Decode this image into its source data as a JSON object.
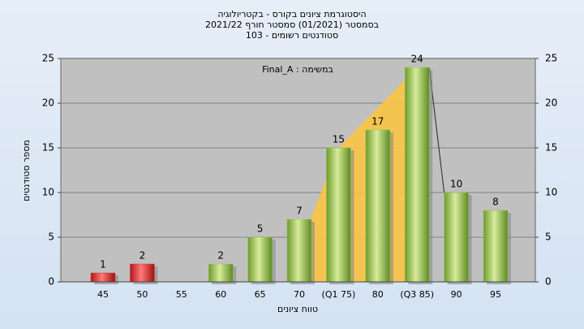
{
  "chart_data": {
    "type": "bar",
    "title": "היסטוגרמת ציונים בקורס - בקטריולוגיה",
    "subtitle": "בסמסטר  (01/2021)  סמסטר חורף 2021/22",
    "subtitle2": "סטודנטים רשומים - 103",
    "annotation": "Final_A : במשימה",
    "x_label": "טווח ציונים",
    "y_label": "מספר סטודנטים",
    "categories": [
      "45",
      "50",
      "55",
      "60",
      "65",
      "70",
      "(Q1 75)",
      "80",
      "(Q3 85)",
      "90",
      "95"
    ],
    "values": [
      1,
      2,
      0,
      2,
      5,
      7,
      15,
      17,
      24,
      10,
      8
    ],
    "colors": [
      "#e03434",
      "#e03434",
      "#9cc256",
      "#9cc256",
      "#9cc256",
      "#9cc256",
      "#9cc256",
      "#9cc256",
      "#9cc256",
      "#9cc256",
      "#9cc256"
    ],
    "ylim": [
      0,
      25
    ],
    "yticks": [
      0,
      5,
      10,
      15,
      20,
      25
    ],
    "y2lim": [
      0,
      25
    ],
    "y2ticks": [
      0,
      5,
      10,
      15,
      20,
      25
    ],
    "grid": true
  }
}
